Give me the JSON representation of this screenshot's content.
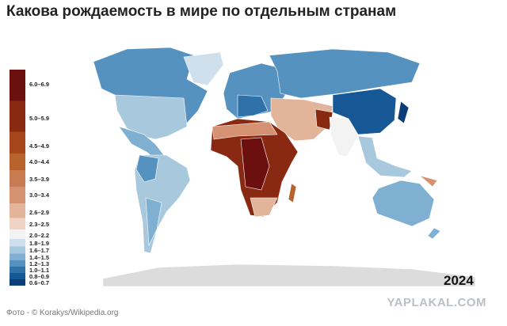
{
  "header": {
    "title": "Какова рождаемость в мире по отдельным странам"
  },
  "legend": {
    "items": [
      {
        "label": "6.0–6.9",
        "color": "#6b0f0f"
      },
      {
        "label": "5.0–5.9",
        "color": "#8a2911"
      },
      {
        "label": "4.5–4.9",
        "color": "#a8461b"
      },
      {
        "label": "4.0–4.4",
        "color": "#b8622e"
      },
      {
        "label": "3.5–3.9",
        "color": "#c87b50"
      },
      {
        "label": "3.0–3.4",
        "color": "#d49272"
      },
      {
        "label": "2.6–2.9",
        "color": "#e2b49a"
      },
      {
        "label": "2.3–2.5",
        "color": "#efd4c5"
      },
      {
        "label": "2.0–2.2",
        "color": "#f3f3f3"
      },
      {
        "label": "1.8–1.9",
        "color": "#cfe0ec"
      },
      {
        "label": "1.6–1.7",
        "color": "#a8c8de"
      },
      {
        "label": "1.4–1.5",
        "color": "#7fb0d2"
      },
      {
        "label": "1.2–1.3",
        "color": "#5592c0"
      },
      {
        "label": "1.0–1.1",
        "color": "#2f72aa"
      },
      {
        "label": "0.8–0.9",
        "color": "#165796"
      },
      {
        "label": "0.6–0.7",
        "color": "#0b3d78"
      }
    ]
  },
  "map": {
    "year": "2024"
  },
  "footer": {
    "caption": "Фото - © Korakys/Wikipedia.org",
    "watermark": "YAPLAKAL.COM"
  }
}
